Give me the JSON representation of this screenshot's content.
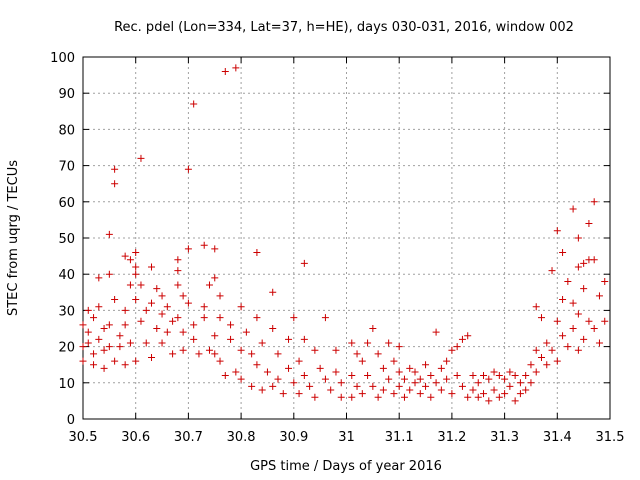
{
  "chart_data": {
    "type": "scatter",
    "title": "Rec. pdel (Lon=334, Lat=37, h=HE), days 030-031, 2016, window 002",
    "xlabel": "GPS time / Days of year 2016",
    "ylabel": "STEC from uqrg / TECUs",
    "xlim": [
      30.5,
      31.5
    ],
    "ylim": [
      0,
      100
    ],
    "x_ticks": [
      "30.5",
      "30.6",
      "30.7",
      "30.8",
      "30.9",
      "31",
      "31.1",
      "31.2",
      "31.3",
      "31.4",
      "31.5"
    ],
    "y_ticks": [
      "0",
      "10",
      "20",
      "30",
      "40",
      "50",
      "60",
      "70",
      "80",
      "90",
      "100"
    ],
    "grid": true,
    "marker": "+",
    "color": "#cc0000",
    "points": [
      [
        30.5,
        26
      ],
      [
        30.5,
        20
      ],
      [
        30.5,
        16
      ],
      [
        30.51,
        30
      ],
      [
        30.51,
        24
      ],
      [
        30.51,
        21
      ],
      [
        30.52,
        18
      ],
      [
        30.52,
        15
      ],
      [
        30.52,
        28
      ],
      [
        30.53,
        31
      ],
      [
        30.53,
        39
      ],
      [
        30.53,
        22
      ],
      [
        30.54,
        19
      ],
      [
        30.54,
        14
      ],
      [
        30.54,
        25
      ],
      [
        30.55,
        40
      ],
      [
        30.55,
        51
      ],
      [
        30.55,
        26
      ],
      [
        30.55,
        20
      ],
      [
        30.56,
        69
      ],
      [
        30.56,
        65
      ],
      [
        30.56,
        33
      ],
      [
        30.56,
        16
      ],
      [
        30.57,
        23
      ],
      [
        30.57,
        20
      ],
      [
        30.58,
        45
      ],
      [
        30.58,
        30
      ],
      [
        30.58,
        26
      ],
      [
        30.58,
        15
      ],
      [
        30.59,
        44
      ],
      [
        30.59,
        37
      ],
      [
        30.59,
        21
      ],
      [
        30.6,
        42
      ],
      [
        30.6,
        40
      ],
      [
        30.6,
        46
      ],
      [
        30.6,
        33
      ],
      [
        30.6,
        16
      ],
      [
        30.61,
        72
      ],
      [
        30.61,
        37
      ],
      [
        30.61,
        27
      ],
      [
        30.62,
        30
      ],
      [
        30.62,
        21
      ],
      [
        30.63,
        42
      ],
      [
        30.63,
        32
      ],
      [
        30.63,
        17
      ],
      [
        30.64,
        36
      ],
      [
        30.64,
        25
      ],
      [
        30.65,
        34
      ],
      [
        30.65,
        29
      ],
      [
        30.65,
        21
      ],
      [
        30.66,
        31
      ],
      [
        30.66,
        24
      ],
      [
        30.67,
        27
      ],
      [
        30.67,
        18
      ],
      [
        30.68,
        41
      ],
      [
        30.68,
        44
      ],
      [
        30.68,
        37
      ],
      [
        30.68,
        28
      ],
      [
        30.69,
        24
      ],
      [
        30.69,
        19
      ],
      [
        30.69,
        34
      ],
      [
        30.7,
        69
      ],
      [
        30.7,
        47
      ],
      [
        30.7,
        32
      ],
      [
        30.71,
        87
      ],
      [
        30.71,
        26
      ],
      [
        30.71,
        22
      ],
      [
        30.72,
        18
      ],
      [
        30.73,
        48
      ],
      [
        30.73,
        31
      ],
      [
        30.73,
        28
      ],
      [
        30.74,
        37
      ],
      [
        30.74,
        19
      ],
      [
        30.75,
        47
      ],
      [
        30.75,
        39
      ],
      [
        30.75,
        23
      ],
      [
        30.75,
        18
      ],
      [
        30.76,
        34
      ],
      [
        30.76,
        28
      ],
      [
        30.76,
        16
      ],
      [
        30.77,
        96
      ],
      [
        30.77,
        12
      ],
      [
        30.78,
        26
      ],
      [
        30.78,
        22
      ],
      [
        30.79,
        97
      ],
      [
        30.79,
        13
      ],
      [
        30.8,
        31
      ],
      [
        30.8,
        19
      ],
      [
        30.8,
        11
      ],
      [
        30.81,
        24
      ],
      [
        30.82,
        18
      ],
      [
        30.82,
        9
      ],
      [
        30.83,
        28
      ],
      [
        30.83,
        46
      ],
      [
        30.83,
        15
      ],
      [
        30.84,
        21
      ],
      [
        30.84,
        8
      ],
      [
        30.85,
        13
      ],
      [
        30.86,
        25
      ],
      [
        30.86,
        35
      ],
      [
        30.86,
        9
      ],
      [
        30.87,
        18
      ],
      [
        30.87,
        11
      ],
      [
        30.88,
        7
      ],
      [
        30.89,
        22
      ],
      [
        30.89,
        14
      ],
      [
        30.9,
        28
      ],
      [
        30.9,
        10
      ],
      [
        30.91,
        16
      ],
      [
        30.91,
        7
      ],
      [
        30.92,
        43
      ],
      [
        30.92,
        22
      ],
      [
        30.92,
        12
      ],
      [
        30.93,
        9
      ],
      [
        30.94,
        19
      ],
      [
        30.94,
        6
      ],
      [
        30.95,
        14
      ],
      [
        30.96,
        28
      ],
      [
        30.96,
        11
      ],
      [
        30.97,
        8
      ],
      [
        30.98,
        19
      ],
      [
        30.98,
        13
      ],
      [
        30.99,
        10
      ],
      [
        30.99,
        6
      ],
      [
        31.01,
        21
      ],
      [
        31.01,
        12
      ],
      [
        31.01,
        6
      ],
      [
        31.02,
        18
      ],
      [
        31.02,
        9
      ],
      [
        31.03,
        16
      ],
      [
        31.03,
        7
      ],
      [
        31.04,
        21
      ],
      [
        31.04,
        12
      ],
      [
        31.05,
        25
      ],
      [
        31.05,
        9
      ],
      [
        31.06,
        18
      ],
      [
        31.06,
        6
      ],
      [
        31.07,
        14
      ],
      [
        31.07,
        8
      ],
      [
        31.08,
        21
      ],
      [
        31.08,
        11
      ],
      [
        31.09,
        16
      ],
      [
        31.09,
        7
      ],
      [
        31.1,
        20
      ],
      [
        31.1,
        13
      ],
      [
        31.1,
        9
      ],
      [
        31.11,
        11
      ],
      [
        31.11,
        6
      ],
      [
        31.12,
        14
      ],
      [
        31.12,
        8
      ],
      [
        31.13,
        13
      ],
      [
        31.13,
        10
      ],
      [
        31.14,
        11
      ],
      [
        31.14,
        7
      ],
      [
        31.15,
        15
      ],
      [
        31.15,
        9
      ],
      [
        31.16,
        12
      ],
      [
        31.16,
        6
      ],
      [
        31.17,
        24
      ],
      [
        31.17,
        10
      ],
      [
        31.18,
        14
      ],
      [
        31.18,
        8
      ],
      [
        31.19,
        16
      ],
      [
        31.19,
        11
      ],
      [
        31.2,
        19
      ],
      [
        31.2,
        7
      ],
      [
        31.21,
        20
      ],
      [
        31.21,
        12
      ],
      [
        31.22,
        22
      ],
      [
        31.22,
        9
      ],
      [
        31.23,
        23
      ],
      [
        31.23,
        6
      ],
      [
        31.24,
        12
      ],
      [
        31.24,
        8
      ],
      [
        31.25,
        10
      ],
      [
        31.25,
        6
      ],
      [
        31.26,
        12
      ],
      [
        31.26,
        7
      ],
      [
        31.27,
        11
      ],
      [
        31.27,
        5
      ],
      [
        31.28,
        13
      ],
      [
        31.28,
        8
      ],
      [
        31.29,
        12
      ],
      [
        31.29,
        6
      ],
      [
        31.3,
        11
      ],
      [
        31.3,
        7
      ],
      [
        31.31,
        13
      ],
      [
        31.31,
        9
      ],
      [
        31.32,
        12
      ],
      [
        31.32,
        5
      ],
      [
        31.33,
        10
      ],
      [
        31.33,
        7
      ],
      [
        31.34,
        12
      ],
      [
        31.34,
        8
      ],
      [
        31.35,
        15
      ],
      [
        31.35,
        10
      ],
      [
        31.36,
        31
      ],
      [
        31.36,
        19
      ],
      [
        31.36,
        13
      ],
      [
        31.37,
        28
      ],
      [
        31.37,
        17
      ],
      [
        31.38,
        21
      ],
      [
        31.38,
        15
      ],
      [
        31.39,
        41
      ],
      [
        31.39,
        19
      ],
      [
        31.4,
        52
      ],
      [
        31.4,
        27
      ],
      [
        31.4,
        16
      ],
      [
        31.41,
        46
      ],
      [
        31.41,
        33
      ],
      [
        31.41,
        23
      ],
      [
        31.42,
        38
      ],
      [
        31.42,
        20
      ],
      [
        31.43,
        58
      ],
      [
        31.43,
        32
      ],
      [
        31.43,
        25
      ],
      [
        31.44,
        50
      ],
      [
        31.44,
        42
      ],
      [
        31.44,
        29
      ],
      [
        31.44,
        19
      ],
      [
        31.45,
        43
      ],
      [
        31.45,
        36
      ],
      [
        31.45,
        22
      ],
      [
        31.46,
        54
      ],
      [
        31.46,
        44
      ],
      [
        31.46,
        27
      ],
      [
        31.47,
        60
      ],
      [
        31.47,
        44
      ],
      [
        31.47,
        25
      ],
      [
        31.48,
        34
      ],
      [
        31.48,
        21
      ],
      [
        31.49,
        38
      ],
      [
        31.49,
        27
      ]
    ]
  }
}
